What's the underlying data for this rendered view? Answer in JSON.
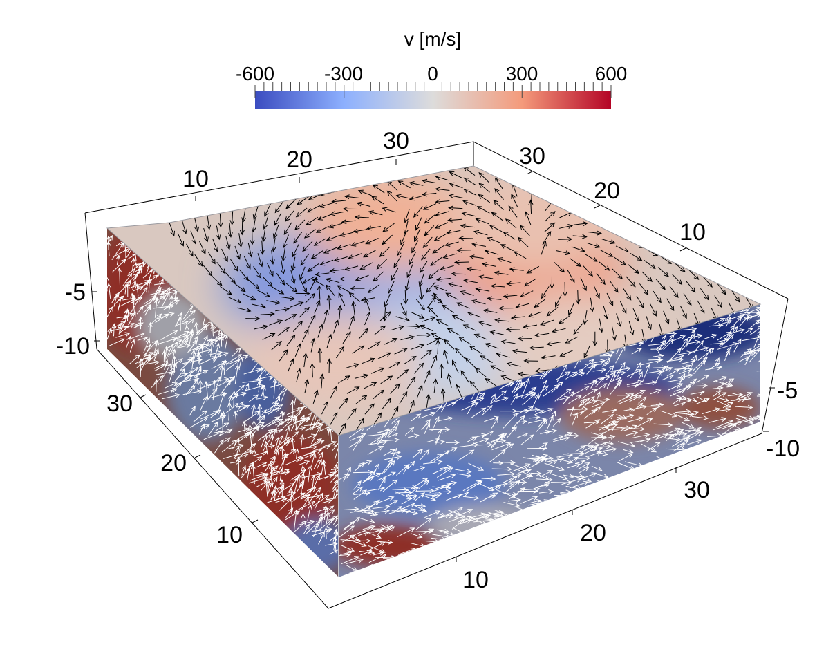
{
  "chart_data": {
    "type": "heatmap",
    "subtype": "3d-volume-slices-with-vector-glyphs",
    "title": "",
    "colorbar": {
      "title": "v [m/s]",
      "range": [
        -600,
        600
      ],
      "ticks": [
        -600,
        -300,
        0,
        300,
        600
      ],
      "tick_labels": [
        "-600",
        "-300",
        "0",
        "300",
        "600"
      ],
      "colormap": "coolwarm",
      "colors": [
        "#3b4cc0",
        "#b5cdf2",
        "#dddcdb",
        "#f5a685",
        "#b40426"
      ]
    },
    "axes": {
      "top_back_x": {
        "tick_labels": [
          "10",
          "20",
          "30"
        ]
      },
      "top_right_y": {
        "tick_labels": [
          "10",
          "20",
          "30"
        ]
      },
      "bottom_left_y": {
        "tick_labels": [
          "10",
          "20",
          "30"
        ]
      },
      "bottom_right_x": {
        "tick_labels": [
          "10",
          "20",
          "30"
        ]
      },
      "z_left": {
        "tick_labels": [
          "-5",
          "-10"
        ]
      },
      "z_right": {
        "tick_labels": [
          "-5",
          "-10"
        ]
      }
    },
    "surface_field": {
      "description_free": true,
      "blobs": [
        {
          "x": 0.22,
          "y": 0.38,
          "v": -420
        },
        {
          "x": 0.5,
          "y": 0.52,
          "v": -380
        },
        {
          "x": 0.58,
          "y": 0.2,
          "v": 240
        },
        {
          "x": 0.74,
          "y": 0.55,
          "v": 330
        },
        {
          "x": 0.35,
          "y": 0.78,
          "v": -200
        },
        {
          "x": 0.88,
          "y": 0.35,
          "v": 150
        },
        {
          "x": 0.12,
          "y": 0.7,
          "v": 120
        },
        {
          "x": 0.62,
          "y": 0.92,
          "v": 90
        }
      ]
    },
    "glyph_colors": {
      "top": "#000000",
      "sides": "#ffffff"
    }
  }
}
